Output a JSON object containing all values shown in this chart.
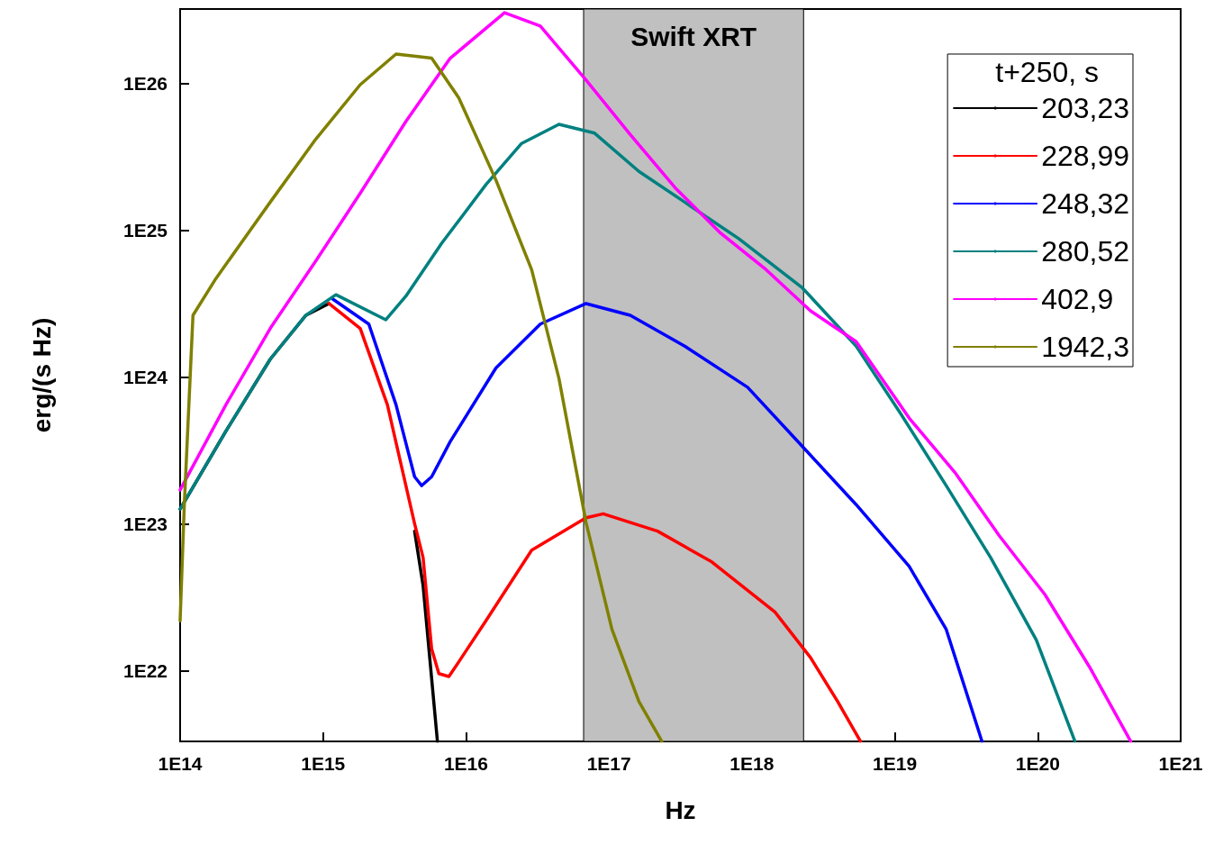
{
  "chart_data": {
    "type": "line",
    "xlabel": "Hz",
    "ylabel": "erg/(s Hz)",
    "legend_title": "t+250, s",
    "legend": "top right",
    "log": "xy",
    "grid": false,
    "marker": "none",
    "line_style": "solid",
    "xlim": [
      100000000000000.0,
      1e+21
    ],
    "ylim": [
      3.3e+21,
      3.2e+26
    ],
    "xticks": [
      {
        "value": 100000000000000.0,
        "label": "1E14"
      },
      {
        "value": 1000000000000000.0,
        "label": "1E15"
      },
      {
        "value": 1e+16,
        "label": "1E16"
      },
      {
        "value": 1e+17,
        "label": "1E17"
      },
      {
        "value": 1e+18,
        "label": "1E18"
      },
      {
        "value": 1e+19,
        "label": "1E19"
      },
      {
        "value": 1e+20,
        "label": "1E20"
      },
      {
        "value": 1e+21,
        "label": "1E21"
      }
    ],
    "yticks": [
      {
        "value": 1e+22,
        "label": "1E22"
      },
      {
        "value": 1e+23,
        "label": "1E23"
      },
      {
        "value": 1e+24,
        "label": "1E24"
      },
      {
        "value": 1e+25,
        "label": "1E25"
      },
      {
        "value": 1e+26,
        "label": "1E26"
      }
    ],
    "bands": [
      {
        "axis": "x",
        "from": 6.65e+16,
        "to": 2.3e+18,
        "label": "Swift XRT",
        "color": "#c0c0c0"
      }
    ],
    "series": [
      {
        "name": "203,23",
        "color": "#000000",
        "x": [
          100000000000000.0,
          209000000000000.0,
          427000000000000.0,
          759000000000000.0,
          1100000000000000.0,
          1820000000000000.0,
          2820000000000000.0,
          4370000000000000.0,
          5010000000000000.0,
          6310000000000000.0
        ],
        "values": [
          1.26e+23,
          4.27e+23,
          1.32e+24,
          2.63e+24,
          3.16e+24,
          null,
          null,
          8.91e+22,
          3.8e+22,
          3.31e+21
        ]
      },
      {
        "name": "228,99",
        "color": "#ff0000",
        "x": [
          1100000000000000.0,
          1820000000000000.0,
          2820000000000000.0,
          4370000000000000.0,
          5010000000000000.0,
          5750000000000000.0,
          6460000000000000.0,
          7590000000000000.0,
          8910000000000000.0,
          1.38e+16,
          2.88e+16,
          6.92e+16,
          9.12e+16,
          2.19e+17,
          5.25e+17,
          1.45e+18,
          2.57e+18,
          3.98e+18,
          5.75e+18
        ],
        "values": [
          3.16e+24,
          2.14e+24,
          6.46e+23,
          1e+23,
          5.89e+22,
          1.41e+22,
          9.55e+21,
          9.12e+21,
          1.15e+22,
          2.19e+22,
          6.61e+22,
          1.1e+23,
          1.17e+23,
          8.91e+22,
          5.5e+22,
          2.51e+22,
          1.23e+22,
          6.17e+21,
          3.31e+21
        ]
      },
      {
        "name": "248,32",
        "color": "#0000ff",
        "x": [
          1170000000000000.0,
          2090000000000000.0,
          3240000000000000.0,
          4370000000000000.0,
          4900000000000000.0,
          5750000000000000.0,
          7760000000000000.0,
          1.62e+16,
          3.31e+16,
          6.92e+16,
          1.41e+17,
          3.39e+17,
          9.33e+17,
          2.24e+18,
          5.37e+18,
          1.26e+19,
          2.29e+19,
          4.07e+19
        ],
        "values": [
          3.39e+24,
          2.29e+24,
          6.46e+23,
          2.09e+23,
          1.82e+23,
          2.09e+23,
          3.63e+23,
          1.15e+24,
          2.29e+24,
          3.16e+24,
          2.63e+24,
          1.62e+24,
          8.51e+23,
          3.39e+23,
          1.35e+23,
          5.13e+22,
          1.91e+22,
          3.31e+21
        ]
      },
      {
        "name": "280,52",
        "color": "#008080",
        "x": [
          100000000000000.0,
          209000000000000.0,
          427000000000000.0,
          759000000000000.0,
          1230000000000000.0,
          2750000000000000.0,
          3800000000000000.0,
          6760000000000000.0,
          1.38e+16,
          2.45e+16,
          4.47e+16,
          7.94e+16,
          1.62e+17,
          3.39e+17,
          8.13e+17,
          2.24e+18,
          5.37e+18,
          1.1e+19,
          2.29e+19,
          4.68e+19,
          9.77e+19,
          1.82e+20
        ],
        "values": [
          1.26e+23,
          4.27e+23,
          1.32e+24,
          2.63e+24,
          3.63e+24,
          2.45e+24,
          3.55e+24,
          8.13e+24,
          2.04e+25,
          3.89e+25,
          5.25e+25,
          4.57e+25,
          2.51e+25,
          1.55e+25,
          8.71e+24,
          4.07e+24,
          1.62e+24,
          5.62e+23,
          1.82e+23,
          5.89e+22,
          1.62e+22,
          3.31e+21
        ]
      },
      {
        "name": "402,9",
        "color": "#ff00ff",
        "x": [
          100000000000000.0,
          209000000000000.0,
          427000000000000.0,
          891000000000000.0,
          1820000000000000.0,
          3800000000000000.0,
          7760000000000000.0,
          1.86e+16,
          3.31e+16,
          6.92e+16,
          1.41e+17,
          2.95e+17,
          6.03e+17,
          1.26e+18,
          2.57e+18,
          5.37e+18,
          1.26e+19,
          2.63e+19,
          5.37e+19,
          1.12e+20,
          2.29e+20,
          4.47e+20
        ],
        "values": [
          1.7e+23,
          6.46e+23,
          2.14e+24,
          6.17e+24,
          1.78e+25,
          5.5e+25,
          1.48e+26,
          3.02e+26,
          2.45e+26,
          1.05e+26,
          4.47e+25,
          1.91e+25,
          9.55e+24,
          5.37e+24,
          2.82e+24,
          1.74e+24,
          5.25e+23,
          2.24e+23,
          8.32e+22,
          3.31e+22,
          1.07e+22,
          3.31e+21
        ]
      },
      {
        "name": "1942,3",
        "color": "#808000",
        "x": [
          100000000000000.0,
          107000000000000.0,
          123000000000000.0,
          178000000000000.0,
          427000000000000.0,
          891000000000000.0,
          1820000000000000.0,
          3240000000000000.0,
          5750000000000000.0,
          8910000000000000.0,
          1.62e+16,
          2.88e+16,
          4.47e+16,
          6.92e+16,
          1.05e+17,
          1.62e+17,
          2.34e+17
        ],
        "values": [
          2.19e+22,
          1.35e+23,
          2.63e+24,
          4.68e+24,
          1.55e+25,
          4.17e+25,
          9.77e+25,
          1.58e+26,
          1.48e+26,
          7.94e+25,
          2.19e+25,
          5.37e+24,
          9.77e+23,
          1.02e+23,
          1.91e+22,
          6.17e+21,
          3.31e+21
        ]
      }
    ]
  }
}
